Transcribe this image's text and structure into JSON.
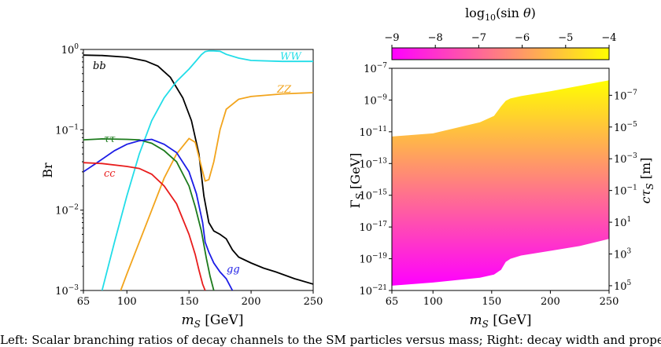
{
  "caption": "Left: Scalar branching ratios of decay channels to the SM particles versus mass; Right: decay width and proper decay length of S as a function of mass",
  "chart_data": [
    {
      "type": "line",
      "xlabel": "m_S [GeV]",
      "ylabel": "Br",
      "xlim": [
        65,
        250
      ],
      "ylim": [
        0.001,
        1
      ],
      "yscale": "log",
      "x_ticks": [
        "65",
        "100",
        "150",
        "200",
        "250"
      ],
      "y_ticks": [
        "10^0",
        "10^-1",
        "10^-2",
        "10^-3"
      ],
      "series": [
        {
          "name": "bb",
          "color": "#000000",
          "x": [
            65,
            80,
            100,
            115,
            125,
            135,
            145,
            152,
            158,
            162,
            166,
            170,
            175,
            180,
            185,
            190,
            200,
            210,
            220,
            235,
            250
          ],
          "y": [
            0.85,
            0.84,
            0.8,
            0.72,
            0.62,
            0.45,
            0.25,
            0.13,
            0.05,
            0.015,
            0.007,
            0.0055,
            0.005,
            0.0044,
            0.0032,
            0.0026,
            0.0022,
            0.0019,
            0.0017,
            0.0014,
            0.0012
          ]
        },
        {
          "name": "WW",
          "color": "#22dde8",
          "x": [
            80,
            85,
            90,
            100,
            110,
            120,
            130,
            140,
            150,
            155,
            160,
            163,
            166,
            170,
            175,
            180,
            190,
            200,
            225,
            250
          ],
          "y": [
            0.001,
            0.002,
            0.004,
            0.015,
            0.05,
            0.13,
            0.25,
            0.4,
            0.57,
            0.7,
            0.86,
            0.94,
            0.96,
            0.96,
            0.95,
            0.87,
            0.78,
            0.73,
            0.71,
            0.71
          ]
        },
        {
          "name": "ZZ",
          "color": "#f2a41c",
          "x": [
            95,
            100,
            110,
            120,
            130,
            140,
            150,
            155,
            160,
            163,
            166,
            170,
            175,
            180,
            190,
            200,
            225,
            250
          ],
          "y": [
            0.001,
            0.0016,
            0.004,
            0.01,
            0.025,
            0.05,
            0.078,
            0.07,
            0.035,
            0.023,
            0.024,
            0.04,
            0.1,
            0.18,
            0.24,
            0.26,
            0.28,
            0.29
          ]
        },
        {
          "name": "ττ",
          "color": "#1c7a1c",
          "x": [
            65,
            80,
            100,
            110,
            120,
            130,
            140,
            150,
            155,
            160,
            164,
            167,
            170
          ],
          "y": [
            0.075,
            0.077,
            0.076,
            0.075,
            0.068,
            0.055,
            0.04,
            0.02,
            0.011,
            0.0055,
            0.0025,
            0.0015,
            0.001
          ]
        },
        {
          "name": "gg",
          "color": "#1c1ce6",
          "x": [
            65,
            75,
            90,
            100,
            110,
            120,
            130,
            140,
            150,
            156,
            161,
            163,
            166,
            170,
            175,
            180,
            185
          ],
          "y": [
            0.03,
            0.038,
            0.055,
            0.066,
            0.073,
            0.076,
            0.066,
            0.052,
            0.03,
            0.016,
            0.007,
            0.004,
            0.003,
            0.0022,
            0.0017,
            0.0014,
            0.001
          ]
        },
        {
          "name": "cc",
          "color": "#e81c1c",
          "x": [
            65,
            80,
            100,
            110,
            120,
            130,
            140,
            150,
            155,
            158,
            161,
            163
          ],
          "y": [
            0.039,
            0.038,
            0.035,
            0.033,
            0.028,
            0.02,
            0.012,
            0.005,
            0.0028,
            0.0018,
            0.0012,
            0.001
          ]
        }
      ]
    },
    {
      "type": "area",
      "xlabel": "m_S [GeV]",
      "ylabel": "Γ_S [GeV]",
      "ylabel_right": "cτ_S [m]",
      "xlim": [
        65,
        250
      ],
      "ylim": [
        1e-21,
        1e-07
      ],
      "yscale": "log",
      "x_ticks": [
        "65",
        "100",
        "150",
        "200",
        "250"
      ],
      "y_ticks": [
        "10^-7",
        "10^-9",
        "10^-11",
        "10^-13",
        "10^-15",
        "10^-17",
        "10^-19",
        "10^-21"
      ],
      "y_ticks_right": [
        "10^-7",
        "10^-5",
        "10^-3",
        "10^-1",
        "10^1",
        "10^3",
        "10^5"
      ],
      "colorbar": {
        "label": "log10(sin θ)",
        "range": [
          -9,
          -4
        ],
        "ticks": [
          "−9",
          "−8",
          "−7",
          "−6",
          "−5",
          "−4"
        ],
        "colors": [
          "#ff00ff",
          "#ffff00"
        ]
      },
      "upper_edge": {
        "x": [
          65,
          100,
          140,
          152,
          158,
          162,
          166,
          175,
          200,
          225,
          250
        ],
        "log10_width": [
          -11.3,
          -11.1,
          -10.4,
          -10.0,
          -9.4,
          -9.05,
          -8.9,
          -8.75,
          -8.45,
          -8.1,
          -7.75
        ]
      },
      "lower_edge": {
        "x": [
          65,
          100,
          140,
          152,
          158,
          162,
          166,
          175,
          200,
          225,
          250
        ],
        "log10_width": [
          -20.7,
          -20.5,
          -20.2,
          -20.0,
          -19.7,
          -19.2,
          -19.0,
          -18.8,
          -18.5,
          -18.2,
          -17.75
        ]
      }
    }
  ]
}
